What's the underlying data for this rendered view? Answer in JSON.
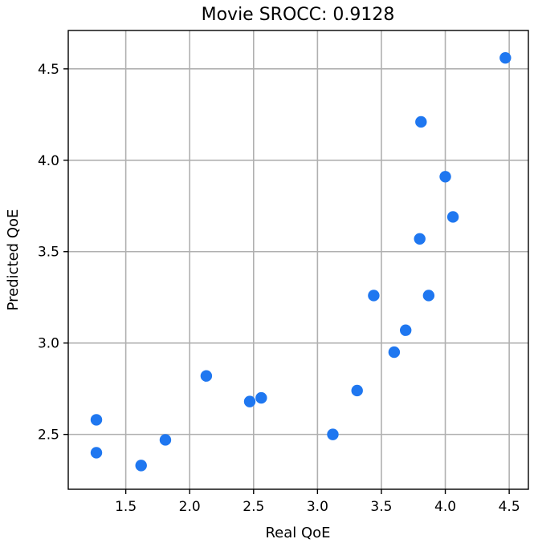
{
  "chart_data": {
    "type": "scatter",
    "title": "Movie SROCC: 0.9128",
    "xlabel": "Real QoE",
    "ylabel": "Predicted QoE",
    "xlim": [
      1.05,
      4.65
    ],
    "ylim": [
      2.2,
      4.71
    ],
    "xticks": [
      1.5,
      2.0,
      2.5,
      3.0,
      3.5,
      4.0,
      4.5
    ],
    "yticks": [
      2.5,
      3.0,
      3.5,
      4.0,
      4.5
    ],
    "xtick_labels": [
      "1.5",
      "2.0",
      "2.5",
      "3.0",
      "3.5",
      "4.0",
      "4.5"
    ],
    "ytick_labels": [
      "2.5",
      "3.0",
      "3.5",
      "4.0",
      "4.5"
    ],
    "grid": true,
    "marker_color": "#1f77f0",
    "points": [
      {
        "x": 1.27,
        "y": 2.58
      },
      {
        "x": 1.27,
        "y": 2.4
      },
      {
        "x": 1.62,
        "y": 2.33
      },
      {
        "x": 1.81,
        "y": 2.47
      },
      {
        "x": 2.13,
        "y": 2.82
      },
      {
        "x": 2.47,
        "y": 2.68
      },
      {
        "x": 2.56,
        "y": 2.7
      },
      {
        "x": 3.12,
        "y": 2.5
      },
      {
        "x": 3.31,
        "y": 2.74
      },
      {
        "x": 3.44,
        "y": 3.26
      },
      {
        "x": 3.6,
        "y": 2.95
      },
      {
        "x": 3.69,
        "y": 3.07
      },
      {
        "x": 3.8,
        "y": 3.57
      },
      {
        "x": 3.81,
        "y": 4.21
      },
      {
        "x": 3.87,
        "y": 3.26
      },
      {
        "x": 4.0,
        "y": 3.91
      },
      {
        "x": 4.06,
        "y": 3.69
      },
      {
        "x": 4.47,
        "y": 4.56
      }
    ]
  }
}
